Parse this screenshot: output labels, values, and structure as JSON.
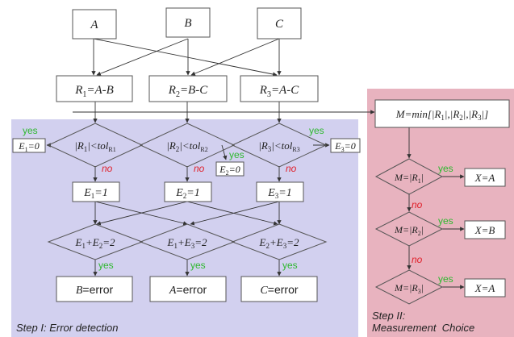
{
  "inputs": {
    "a": "A",
    "b": "B",
    "c": "C"
  },
  "residuals": {
    "r1": {
      "sym": "R",
      "sub": "1",
      "expr": "=A-B"
    },
    "r2": {
      "sym": "R",
      "sub": "2",
      "expr": "=B-C"
    },
    "r3": {
      "sym": "R",
      "sub": "3",
      "expr": "=A-C"
    }
  },
  "tests": {
    "t1": {
      "pre": "|R",
      "sub": "1",
      "mid": "|<tol",
      "sub2": "R1"
    },
    "t2": {
      "pre": "|R",
      "sub": "2",
      "mid": "|<tol",
      "sub2": "R2"
    },
    "t3": {
      "pre": "|R",
      "sub": "3",
      "mid": "|<tol",
      "sub2": "R3"
    }
  },
  "zero_flags": {
    "z1": {
      "sym": "E",
      "sub": "1",
      "val": "=0"
    },
    "z2": {
      "sym": "E",
      "sub": "2",
      "val": "=0"
    },
    "z3": {
      "sym": "E",
      "sub": "3",
      "val": "=0"
    }
  },
  "error_flags": {
    "e1": {
      "sym": "E",
      "sub": "1",
      "val": "=1"
    },
    "e2": {
      "sym": "E",
      "sub": "2",
      "val": "=1"
    },
    "e3": {
      "sym": "E",
      "sub": "3",
      "val": "=1"
    }
  },
  "sums": {
    "s12": {
      "a": "E",
      "as": "1",
      "op": "+",
      "b": "E",
      "bs": "2",
      "val": "=2"
    },
    "s13": {
      "a": "E",
      "as": "1",
      "op": "+",
      "b": "E",
      "bs": "3",
      "val": "=2"
    },
    "s23": {
      "a": "E",
      "as": "2",
      "op": "+",
      "b": "E",
      "bs": "3",
      "val": "=2"
    }
  },
  "errors": {
    "b": {
      "sym": "B",
      "txt": "=error"
    },
    "a": {
      "sym": "A",
      "txt": "=error"
    },
    "c": {
      "sym": "C",
      "txt": "=error"
    }
  },
  "min_box": {
    "pre": "M=min[|R",
    "s1": "1",
    "m1": "|,|R",
    "s2": "2",
    "m2": "|,|R",
    "s3": "3",
    "post": "|]"
  },
  "choices": {
    "c1": {
      "pre": "M=|R",
      "sub": "1",
      "post": "|"
    },
    "c2": {
      "pre": "M=|R",
      "sub": "2",
      "post": "|"
    },
    "c3": {
      "pre": "M=|R",
      "sub": "3",
      "post": "|"
    }
  },
  "outputs": {
    "x1": "X=A",
    "x2": "X=B",
    "x3": "X=A"
  },
  "branch": {
    "yes": "yes",
    "no": "no"
  },
  "step1_label": "Step I: Error detection",
  "step2_line1": "Step II:",
  "step2_line2": "Measurement  Choice",
  "colors": {
    "step1_bg": "#d2d0ef",
    "step2_bg": "#e8b3bf",
    "yes": "#2eb82e",
    "no": "#e0202a"
  }
}
